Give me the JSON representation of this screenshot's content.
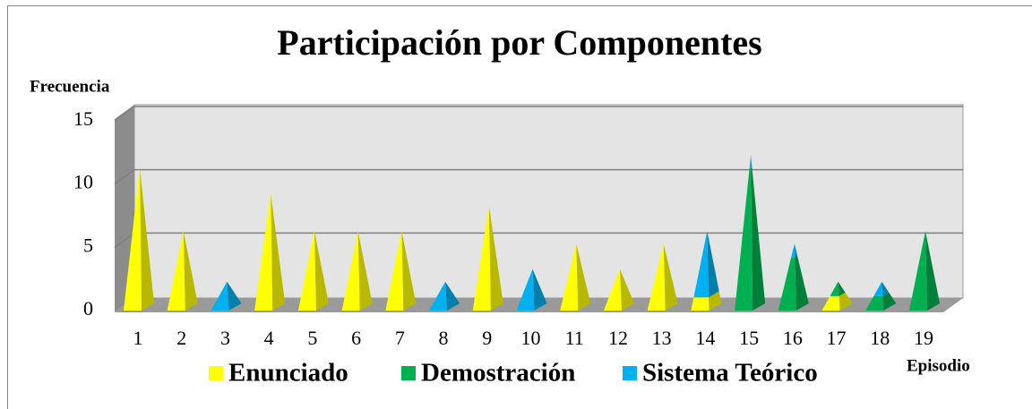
{
  "chart_data": {
    "type": "pyramid_stacked",
    "title": "Participación por Componentes",
    "y_label": "Frecuencia",
    "x_label": "Episodio",
    "categories": [
      "1",
      "2",
      "3",
      "4",
      "5",
      "6",
      "7",
      "8",
      "9",
      "10",
      "11",
      "12",
      "13",
      "14",
      "15",
      "16",
      "17",
      "18",
      "19"
    ],
    "series": [
      {
        "name": "Enunciado",
        "color": "#ffff00",
        "values": [
          11,
          6,
          0,
          9,
          6,
          6,
          6,
          0,
          8,
          0,
          5,
          3,
          5,
          1,
          0,
          0,
          1,
          0,
          0
        ]
      },
      {
        "name": "Demostración",
        "color": "#00b050",
        "values": [
          0,
          0,
          0,
          0,
          0,
          0,
          0,
          0,
          0,
          0,
          0,
          0,
          0,
          0,
          11,
          4,
          1,
          1,
          6
        ]
      },
      {
        "name": "Sistema Teórico",
        "color": "#00b0f0",
        "values": [
          0,
          0,
          2,
          0,
          0,
          0,
          0,
          2,
          0,
          3,
          0,
          0,
          0,
          5,
          1,
          1,
          0,
          1,
          0
        ]
      }
    ],
    "ylim": [
      0,
      15
    ],
    "yticks": [
      0,
      5,
      10,
      15
    ],
    "grid": true,
    "legend": "bottom"
  }
}
